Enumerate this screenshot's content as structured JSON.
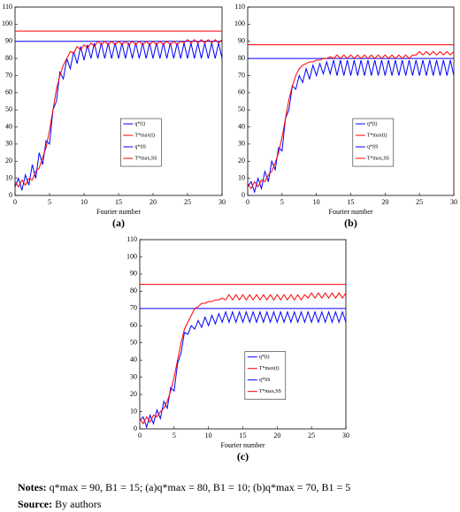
{
  "chart_data": [
    {
      "type": "line",
      "panel": "(a)",
      "xlabel": "Fourier number",
      "x": [
        0,
        0.5,
        1,
        1.5,
        2,
        2.5,
        3,
        3.5,
        4,
        4.5,
        5,
        5.5,
        6,
        6.5,
        7,
        7.5,
        8,
        8.5,
        9,
        9.5,
        10,
        10.5,
        11,
        11.5,
        12,
        12.5,
        13,
        13.5,
        14,
        14.5,
        15,
        15.5,
        16,
        16.5,
        17,
        17.5,
        18,
        18.5,
        19,
        19.5,
        20,
        20.5,
        21,
        21.5,
        22,
        22.5,
        23,
        23.5,
        24,
        24.5,
        25,
        25.5,
        26,
        26.5,
        27,
        27.5,
        28,
        28.5,
        29,
        29.5,
        30
      ],
      "xlim": [
        0,
        30
      ],
      "xticks": [
        0,
        5,
        10,
        15,
        20,
        25,
        30
      ],
      "ylim": [
        0,
        110
      ],
      "yticks": [
        0,
        10,
        20,
        30,
        40,
        50,
        60,
        70,
        80,
        90,
        100,
        110
      ],
      "series": [
        {
          "name": "q*(t)",
          "color": "#0000ff",
          "values": [
            5,
            10,
            3,
            12,
            6,
            18,
            10,
            25,
            18,
            32,
            30,
            50,
            55,
            72,
            68,
            80,
            74,
            84,
            77,
            87,
            79,
            88,
            80,
            89,
            80,
            89,
            80,
            89,
            80,
            89,
            80,
            89,
            80,
            89,
            80,
            89,
            80,
            89,
            80,
            89,
            80,
            89,
            80,
            89,
            80,
            89,
            80,
            89,
            80,
            89,
            80,
            89,
            80,
            89,
            80,
            89,
            80,
            89,
            80,
            89,
            80
          ]
        },
        {
          "name": "T*max(t)",
          "color": "#ff0000",
          "values": [
            8,
            5,
            9,
            6,
            10,
            9,
            14,
            16,
            22,
            28,
            38,
            50,
            62,
            70,
            76,
            80,
            84,
            83,
            87,
            85,
            88,
            86,
            89,
            87,
            90,
            88,
            90,
            88,
            90,
            88,
            90,
            88,
            90,
            88,
            90,
            88,
            90,
            88,
            90,
            88,
            90,
            88,
            90,
            88,
            90,
            88,
            90,
            88,
            90,
            89,
            91,
            89,
            91,
            89,
            91,
            89,
            91,
            89,
            91,
            89,
            91
          ]
        }
      ],
      "reference_lines": [
        {
          "name": "q*SS",
          "color": "#0000ff",
          "value": 90
        },
        {
          "name": "T*max,SS",
          "color": "#ff0000",
          "value": 96
        }
      ]
    },
    {
      "type": "line",
      "panel": "(b)",
      "xlabel": "Fourier number",
      "x": [
        0,
        0.5,
        1,
        1.5,
        2,
        2.5,
        3,
        3.5,
        4,
        4.5,
        5,
        5.5,
        6,
        6.5,
        7,
        7.5,
        8,
        8.5,
        9,
        9.5,
        10,
        10.5,
        11,
        11.5,
        12,
        12.5,
        13,
        13.5,
        14,
        14.5,
        15,
        15.5,
        16,
        16.5,
        17,
        17.5,
        18,
        18.5,
        19,
        19.5,
        20,
        20.5,
        21,
        21.5,
        22,
        22.5,
        23,
        23.5,
        24,
        24.5,
        25,
        25.5,
        26,
        26.5,
        27,
        27.5,
        28,
        28.5,
        29,
        29.5,
        30
      ],
      "xlim": [
        0,
        30
      ],
      "xticks": [
        0,
        5,
        10,
        15,
        20,
        25,
        30
      ],
      "ylim": [
        0,
        110
      ],
      "yticks": [
        0,
        10,
        20,
        30,
        40,
        50,
        60,
        70,
        80,
        90,
        100,
        110
      ],
      "series": [
        {
          "name": "q*(t)",
          "color": "#0000ff",
          "values": [
            5,
            8,
            2,
            10,
            4,
            14,
            8,
            20,
            15,
            28,
            26,
            45,
            50,
            64,
            62,
            70,
            66,
            74,
            68,
            76,
            70,
            77,
            71,
            78,
            71,
            79,
            70,
            79,
            70,
            79,
            70,
            79,
            70,
            79,
            70,
            79,
            70,
            79,
            70,
            79,
            70,
            79,
            70,
            79,
            70,
            79,
            70,
            79,
            70,
            79,
            70,
            79,
            70,
            79,
            70,
            79,
            70,
            79,
            70,
            79,
            70
          ]
        },
        {
          "name": "T*max(t)",
          "color": "#ff0000",
          "values": [
            7,
            4,
            8,
            5,
            9,
            8,
            12,
            14,
            19,
            25,
            34,
            45,
            56,
            64,
            70,
            74,
            76,
            77,
            78,
            78,
            79,
            79,
            80,
            80,
            81,
            80,
            82,
            80,
            82,
            80,
            82,
            80,
            82,
            80,
            82,
            80,
            82,
            80,
            82,
            80,
            82,
            80,
            82,
            80,
            82,
            80,
            82,
            80,
            82,
            82,
            84,
            82,
            84,
            82,
            84,
            82,
            84,
            82,
            84,
            82,
            84
          ]
        }
      ],
      "reference_lines": [
        {
          "name": "q*SS",
          "color": "#0000ff",
          "value": 80
        },
        {
          "name": "T*max,SS",
          "color": "#ff0000",
          "value": 88
        }
      ]
    },
    {
      "type": "line",
      "panel": "(c)",
      "xlabel": "Fourier number",
      "x": [
        0,
        0.5,
        1,
        1.5,
        2,
        2.5,
        3,
        3.5,
        4,
        4.5,
        5,
        5.5,
        6,
        6.5,
        7,
        7.5,
        8,
        8.5,
        9,
        9.5,
        10,
        10.5,
        11,
        11.5,
        12,
        12.5,
        13,
        13.5,
        14,
        14.5,
        15,
        15.5,
        16,
        16.5,
        17,
        17.5,
        18,
        18.5,
        19,
        19.5,
        20,
        20.5,
        21,
        21.5,
        22,
        22.5,
        23,
        23.5,
        24,
        24.5,
        25,
        25.5,
        26,
        26.5,
        27,
        27.5,
        28,
        28.5,
        29,
        29.5,
        30
      ],
      "xlim": [
        0,
        30
      ],
      "xticks": [
        0,
        5,
        10,
        15,
        20,
        25,
        30
      ],
      "ylim": [
        0,
        110
      ],
      "yticks": [
        0,
        10,
        20,
        30,
        40,
        50,
        60,
        70,
        80,
        90,
        100,
        110
      ],
      "series": [
        {
          "name": "q*(t)",
          "color": "#0000ff",
          "values": [
            5,
            7,
            1,
            8,
            3,
            11,
            6,
            16,
            12,
            24,
            22,
            38,
            44,
            56,
            55,
            60,
            58,
            63,
            59,
            65,
            60,
            66,
            61,
            67,
            62,
            68,
            62,
            68,
            62,
            68,
            62,
            68,
            62,
            68,
            62,
            68,
            62,
            68,
            62,
            68,
            62,
            68,
            62,
            68,
            62,
            68,
            62,
            68,
            62,
            68,
            62,
            68,
            62,
            68,
            62,
            68,
            62,
            68,
            62,
            68,
            62
          ]
        },
        {
          "name": "T*max(t)",
          "color": "#ff0000",
          "values": [
            6,
            3,
            7,
            4,
            8,
            7,
            10,
            12,
            16,
            22,
            30,
            40,
            50,
            58,
            62,
            66,
            70,
            71,
            73,
            73,
            74,
            74,
            75,
            75,
            76,
            75,
            78,
            75,
            78,
            75,
            78,
            75,
            78,
            75,
            78,
            75,
            78,
            75,
            78,
            75,
            78,
            75,
            78,
            75,
            78,
            75,
            78,
            75,
            78,
            76,
            79,
            76,
            79,
            76,
            79,
            76,
            79,
            76,
            79,
            76,
            79
          ]
        }
      ],
      "reference_lines": [
        {
          "name": "q*SS",
          "color": "#0000ff",
          "value": 70
        },
        {
          "name": "T*max,SS",
          "color": "#ff0000",
          "value": 84
        }
      ]
    }
  ],
  "notes": {
    "label": "Notes:",
    "text": "q*max = 90, B1 = 15; (a)q*max = 80, B1 = 10; (b)q*max = 70, B1 = 5"
  },
  "source": {
    "label": "Source:",
    "text": "By authors"
  }
}
